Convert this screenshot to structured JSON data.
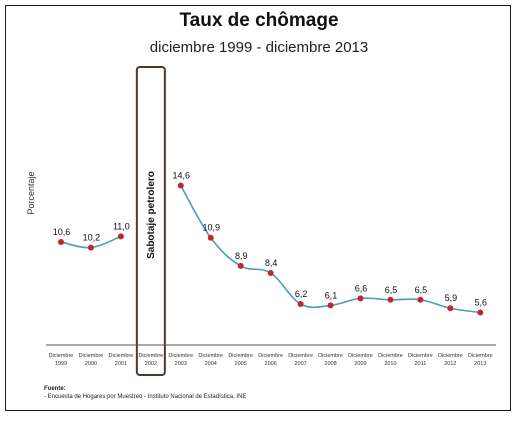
{
  "title": "Taux de chômage",
  "subtitle": "diciembre 1999 - diciembre 2013",
  "source": {
    "label": "Fuente:",
    "text": "- Encuesta de Hogares por Muestreo - Instituto Nacional de Estadística, INE"
  },
  "colors": {
    "line": "#4a9cc4",
    "marker": "#c0272d",
    "highlight_border": "#4a3a30"
  },
  "chart_data": {
    "type": "line",
    "title": "Taux de chômage",
    "subtitle": "diciembre 1999 - diciembre 2013",
    "ylabel": "Porcentaje",
    "xlabel": "",
    "categories": [
      "Diciembre 1999",
      "Diciembre 2000",
      "Diciembre 2001",
      "Diciembre 2002",
      "Diciembre 2003",
      "Diciembre 2004",
      "Diciembre 2005",
      "Diciembre 2006",
      "Diciembre 2007",
      "Diciembre 2008",
      "Diciembre 2009",
      "Diciembre 2010",
      "Diciembre 2011",
      "Diciembre 2012",
      "Diciembre 2013"
    ],
    "category_lines": [
      [
        "Diciembre",
        "1999"
      ],
      [
        "Diciembre",
        "2000"
      ],
      [
        "Diciembre",
        "2001"
      ],
      [
        "Diciembre",
        "2002"
      ],
      [
        "Diciembre",
        "2003"
      ],
      [
        "Diciembre",
        "2004"
      ],
      [
        "Diciembre",
        "2005"
      ],
      [
        "Diciembre",
        "2006"
      ],
      [
        "Diciembre",
        "2007"
      ],
      [
        "Diciembre",
        "2008"
      ],
      [
        "Diciembre",
        "2009"
      ],
      [
        "Diciembre",
        "2010"
      ],
      [
        "Diciembre",
        "2011"
      ],
      [
        "Diciembre",
        "2012"
      ],
      [
        "Diciembre",
        "2013"
      ]
    ],
    "values": [
      10.6,
      10.2,
      11.0,
      null,
      14.6,
      10.9,
      8.9,
      8.4,
      6.2,
      6.1,
      6.6,
      6.5,
      6.5,
      5.9,
      5.6
    ],
    "value_labels": [
      "10,6",
      "10,2",
      "11,0",
      "",
      "14,6",
      "10,9",
      "8,9",
      "8,4",
      "6,2",
      "6,1",
      "6,6",
      "6,5",
      "6,5",
      "5,9",
      "5,6"
    ],
    "annotation": {
      "category": "Diciembre 2002",
      "text": "Sabotaje petrolero"
    },
    "grid": false,
    "legend": "none"
  }
}
